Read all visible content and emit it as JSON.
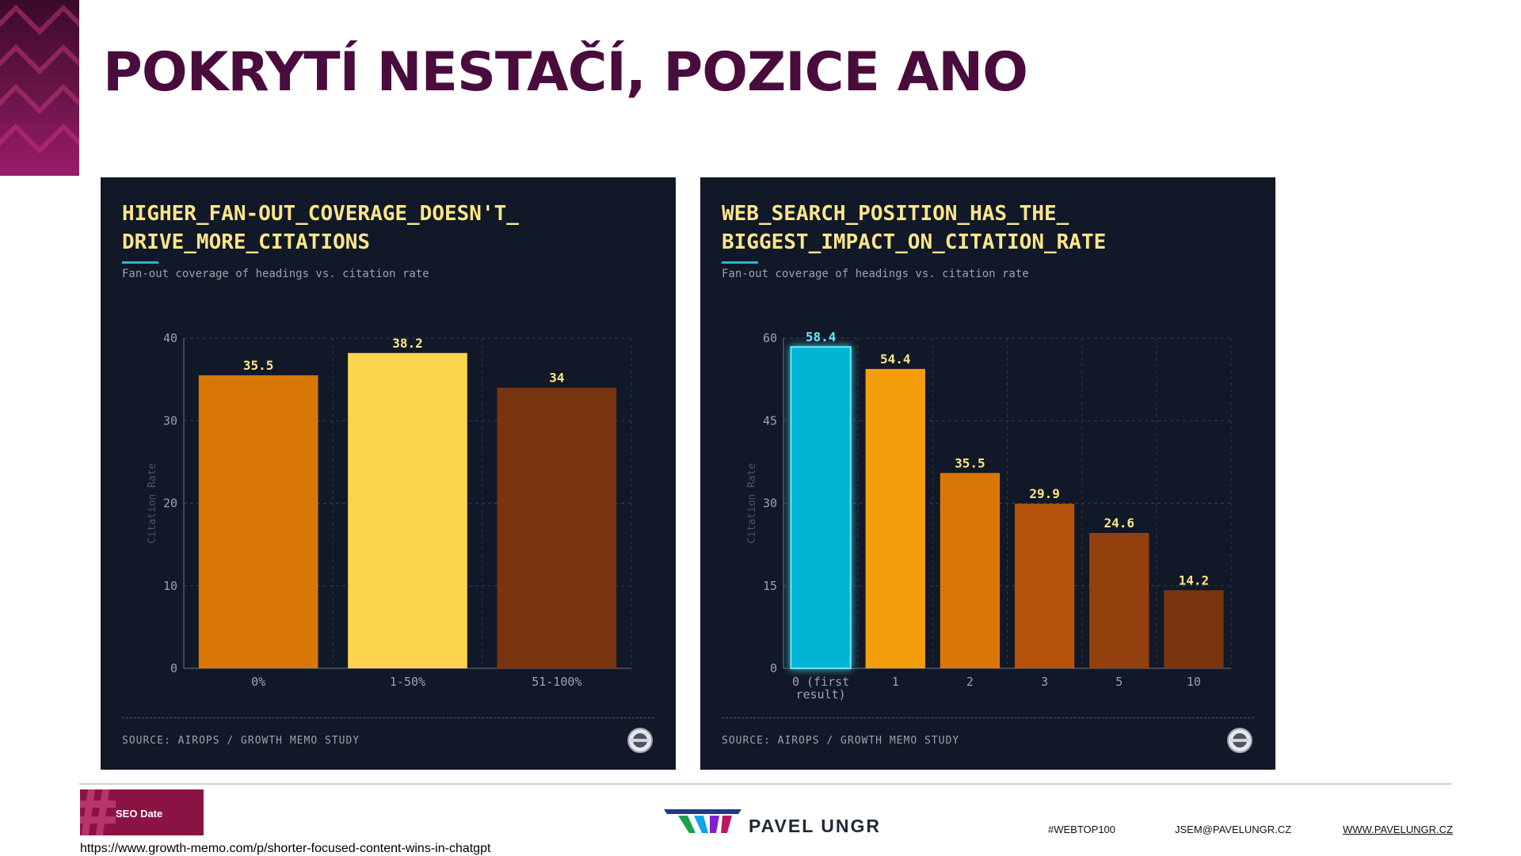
{
  "slide": {
    "title": "POKRYTÍ NESTAČÍ, POZICE ANO"
  },
  "panels": [
    {
      "title": "HIGHER_FAN-OUT_COVERAGE_DOESN'T_\nDRIVE_MORE_CITATIONS",
      "subtitle": "Fan-out coverage of headings vs. citation rate",
      "source": "SOURCE: AIROPS / GROWTH MEMO STUDY"
    },
    {
      "title": "WEB_SEARCH_POSITION_HAS_THE_\nBIGGEST_IMPACT_ON_CITATION_RATE",
      "subtitle": "Fan-out coverage of headings vs. citation rate",
      "source": "SOURCE: AIROPS / GROWTH MEMO STUDY"
    }
  ],
  "chart_data": [
    {
      "type": "bar",
      "title": "HIGHER_FAN-OUT_COVERAGE_DOESN'T_DRIVE_MORE_CITATIONS",
      "subtitle": "Fan-out coverage of headings vs. citation rate",
      "categories": [
        "0%",
        "1-50%",
        "51-100%"
      ],
      "values": [
        35.5,
        38.2,
        34
      ],
      "value_labels": [
        "35.5",
        "38.2",
        "34"
      ],
      "colors": [
        "#d97706",
        "#fcd34d",
        "#78350f"
      ],
      "ylabel": "Citation Rate",
      "ylim": [
        0,
        40
      ],
      "yticks": [
        0,
        10,
        20,
        30,
        40
      ],
      "grid": true
    },
    {
      "type": "bar",
      "title": "WEB_SEARCH_POSITION_HAS_THE_BIGGEST_IMPACT_ON_CITATION_RATE",
      "subtitle": "Fan-out coverage of headings vs. citation rate",
      "categories": [
        "0 (first result)",
        "1",
        "2",
        "3",
        "5",
        "10"
      ],
      "values": [
        58.4,
        54.4,
        35.5,
        29.9,
        24.6,
        14.2
      ],
      "value_labels": [
        "58.4",
        "54.4",
        "35.5",
        "29.9",
        "24.6",
        "14.2"
      ],
      "colors": [
        "#06b6d4",
        "#f59e0b",
        "#d97706",
        "#b45309",
        "#92400e",
        "#78350f"
      ],
      "highlight_index": 0,
      "highlight_label_color": "#67e8f9",
      "ylabel": "Citation Rate",
      "ylim": [
        0,
        60
      ],
      "yticks": [
        0,
        15,
        30,
        45,
        60
      ],
      "grid": true
    }
  ],
  "footer": {
    "seo_label": "SEO Date",
    "url": "https://www.growth-memo.com/p/shorter-focused-content-wins-in-chatgpt",
    "brand": "PAVEL UNGR",
    "hashtag": "#WEBTOP100",
    "email": "JSEM@PAVELUNGR.CZ",
    "website": "WWW.PAVELUNGR.CZ"
  },
  "colors": {
    "title": "#4a0c3c",
    "panel_bg": "#111827",
    "panel_title": "#fde68a",
    "accent": "#22b8d6",
    "seo_bg": "#8b1344"
  }
}
